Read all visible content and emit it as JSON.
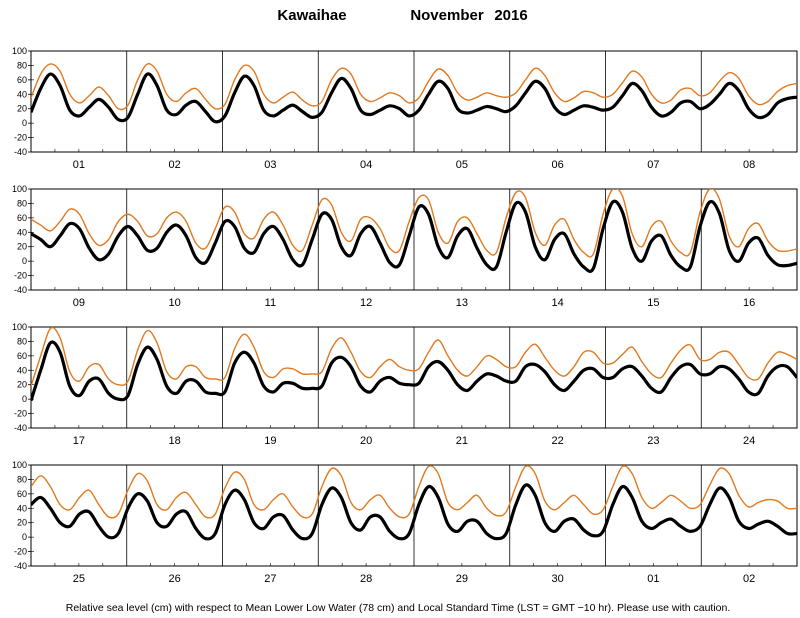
{
  "chart_data": {
    "type": "line",
    "title_location": "Kawaihae",
    "title_period": "November",
    "title_year": "2016",
    "footer": "Relative sea level (cm) with respect to Mean Lower Low Water (78 cm) and Local Standard Time (LST = GMT −10 hr). Please use with caution.",
    "ylim": [
      -40,
      100
    ],
    "yticks": [
      -40,
      -20,
      0,
      20,
      40,
      60,
      80,
      100
    ],
    "grid": false,
    "colors": {
      "series_a": "#000000",
      "series_b": "#e07a1f"
    },
    "panels": [
      {
        "days": [
          "01",
          "02",
          "03",
          "04",
          "05",
          "06",
          "07",
          "08"
        ],
        "series": [
          {
            "values": [
              15,
              48,
              68,
              52,
              18,
              10,
              22,
              33,
              22,
              5,
              8,
              40,
              68,
              52,
              18,
              12,
              25,
              30,
              16,
              2,
              10,
              42,
              65,
              52,
              18,
              10,
              18,
              25,
              16,
              8,
              15,
              42,
              62,
              48,
              18,
              12,
              18,
              24,
              20,
              10,
              18,
              40,
              58,
              48,
              20,
              14,
              18,
              23,
              20,
              16,
              24,
              42,
              58,
              48,
              22,
              12,
              18,
              24,
              22,
              18,
              22,
              38,
              55,
              45,
              22,
              10,
              15,
              28,
              30,
              20,
              26,
              40,
              55,
              45,
              20,
              8,
              12,
              28,
              34,
              36
            ]
          },
          {
            "values": [
              35,
              68,
              82,
              72,
              40,
              28,
              38,
              50,
              38,
              20,
              25,
              60,
              82,
              72,
              40,
              30,
              42,
              48,
              33,
              20,
              26,
              60,
              80,
              72,
              40,
              28,
              36,
              43,
              32,
              24,
              30,
              60,
              76,
              68,
              40,
              30,
              35,
              42,
              38,
              28,
              35,
              58,
              75,
              66,
              42,
              32,
              36,
              42,
              38,
              36,
              42,
              60,
              76,
              66,
              42,
              30,
              35,
              44,
              42,
              36,
              40,
              56,
              72,
              64,
              40,
              28,
              32,
              46,
              48,
              38,
              42,
              58,
              70,
              62,
              38,
              26,
              30,
              44,
              52,
              55
            ]
          }
        ]
      },
      {
        "days": [
          "09",
          "10",
          "11",
          "12",
          "13",
          "14",
          "15",
          "16"
        ],
        "series": [
          {
            "values": [
              38,
              30,
              20,
              35,
              52,
              45,
              18,
              2,
              10,
              35,
              48,
              35,
              15,
              18,
              40,
              50,
              35,
              5,
              -2,
              25,
              55,
              48,
              18,
              12,
              38,
              48,
              30,
              2,
              -5,
              30,
              65,
              58,
              20,
              8,
              38,
              48,
              25,
              -2,
              -5,
              35,
              75,
              65,
              20,
              5,
              35,
              45,
              18,
              -5,
              -8,
              40,
              80,
              68,
              20,
              2,
              30,
              38,
              10,
              -8,
              -10,
              45,
              82,
              68,
              18,
              0,
              28,
              35,
              8,
              -8,
              -8,
              48,
              82,
              66,
              15,
              0,
              25,
              32,
              8,
              -5,
              -6,
              -3
            ]
          },
          {
            "values": [
              58,
              50,
              42,
              55,
              72,
              65,
              38,
              22,
              30,
              55,
              65,
              55,
              35,
              38,
              60,
              68,
              55,
              25,
              18,
              45,
              75,
              68,
              38,
              32,
              58,
              68,
              50,
              22,
              15,
              50,
              85,
              78,
              40,
              28,
              58,
              60,
              45,
              18,
              15,
              55,
              88,
              85,
              40,
              25,
              55,
              60,
              38,
              15,
              12,
              60,
              95,
              88,
              40,
              22,
              50,
              58,
              30,
              12,
              10,
              65,
              100,
              90,
              38,
              20,
              48,
              55,
              28,
              12,
              12,
              68,
              100,
              86,
              35,
              20,
              45,
              52,
              28,
              15,
              14,
              17
            ]
          }
        ]
      },
      {
        "days": [
          "17",
          "18",
          "19",
          "20",
          "21",
          "22",
          "23",
          "24"
        ],
        "series": [
          {
            "values": [
              -2,
              40,
              78,
              65,
              18,
              5,
              25,
              28,
              8,
              0,
              5,
              48,
              72,
              55,
              18,
              8,
              25,
              25,
              10,
              8,
              10,
              50,
              65,
              50,
              18,
              10,
              22,
              22,
              15,
              15,
              18,
              50,
              58,
              45,
              18,
              10,
              25,
              30,
              22,
              20,
              22,
              45,
              52,
              40,
              20,
              12,
              25,
              35,
              32,
              25,
              25,
              45,
              48,
              38,
              20,
              12,
              25,
              40,
              42,
              30,
              30,
              42,
              45,
              32,
              15,
              10,
              30,
              45,
              48,
              35,
              35,
              45,
              42,
              28,
              10,
              8,
              32,
              45,
              45,
              30
            ]
          },
          {
            "values": [
              18,
              60,
              98,
              85,
              38,
              25,
              45,
              48,
              28,
              20,
              25,
              68,
              95,
              78,
              38,
              28,
              45,
              45,
              30,
              28,
              30,
              70,
              90,
              72,
              38,
              30,
              42,
              42,
              35,
              35,
              38,
              70,
              85,
              65,
              38,
              30,
              45,
              55,
              45,
              40,
              42,
              65,
              82,
              60,
              40,
              32,
              45,
              60,
              55,
              45,
              45,
              65,
              76,
              58,
              40,
              32,
              45,
              65,
              65,
              50,
              50,
              62,
              72,
              52,
              35,
              30,
              50,
              68,
              75,
              55,
              55,
              65,
              65,
              48,
              30,
              28,
              50,
              65,
              62,
              55
            ]
          }
        ]
      },
      {
        "days": [
          "25",
          "26",
          "27",
          "28",
          "29",
          "30",
          "01",
          "02"
        ],
        "series": [
          {
            "values": [
              45,
              55,
              40,
              20,
              15,
              32,
              35,
              15,
              0,
              5,
              40,
              60,
              50,
              20,
              15,
              32,
              35,
              12,
              -2,
              5,
              45,
              65,
              52,
              20,
              12,
              28,
              30,
              10,
              -2,
              5,
              45,
              68,
              55,
              20,
              10,
              28,
              28,
              8,
              -2,
              5,
              45,
              70,
              55,
              18,
              8,
              22,
              22,
              5,
              -2,
              5,
              45,
              72,
              58,
              20,
              8,
              22,
              25,
              10,
              2,
              8,
              45,
              70,
              55,
              22,
              12,
              20,
              25,
              15,
              8,
              15,
              45,
              68,
              55,
              22,
              12,
              18,
              22,
              15,
              5,
              5
            ]
          },
          {
            "values": [
              70,
              85,
              70,
              45,
              38,
              55,
              65,
              45,
              28,
              32,
              65,
              88,
              78,
              45,
              38,
              55,
              62,
              45,
              28,
              32,
              68,
              90,
              80,
              45,
              38,
              52,
              60,
              42,
              28,
              32,
              70,
              95,
              85,
              48,
              38,
              52,
              58,
              40,
              28,
              32,
              70,
              98,
              88,
              48,
              38,
              48,
              58,
              40,
              30,
              35,
              70,
              98,
              88,
              50,
              38,
              48,
              58,
              45,
              32,
              38,
              70,
              98,
              88,
              55,
              40,
              48,
              58,
              50,
              40,
              45,
              72,
              95,
              88,
              58,
              42,
              48,
              52,
              50,
              40,
              40
            ]
          }
        ]
      }
    ]
  }
}
